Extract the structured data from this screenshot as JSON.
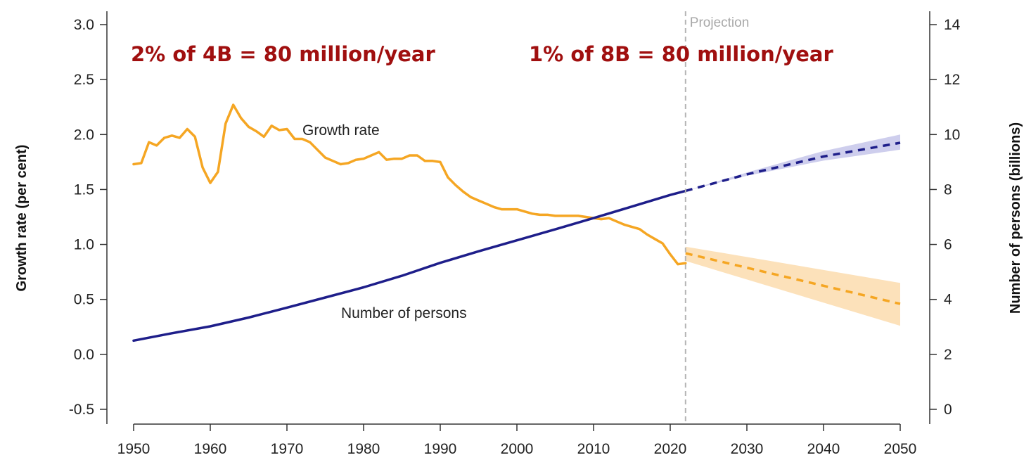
{
  "chart_data": {
    "type": "line",
    "x_ticks": [
      1950,
      1960,
      1970,
      1980,
      1990,
      2000,
      2010,
      2020,
      2030,
      2040,
      2050
    ],
    "xlim": [
      1950,
      2050
    ],
    "y_left": {
      "label": "Growth rate (per cent)",
      "lim": [
        -0.5,
        3.0
      ],
      "ticks": [
        -0.5,
        0.0,
        0.5,
        1.0,
        1.5,
        2.0,
        2.5,
        3.0
      ],
      "tick_labels": [
        "-0.5",
        "0.0",
        "0.5",
        "1.0",
        "1.5",
        "2.0",
        "2.5",
        "3.0"
      ]
    },
    "y_right": {
      "label": "Number of persons (billions)",
      "lim": [
        0,
        14
      ],
      "ticks": [
        0,
        2,
        4,
        6,
        8,
        10,
        12,
        14
      ]
    },
    "projection_start": 2022,
    "projection_label": "Projection",
    "series": [
      {
        "name": "Growth rate",
        "axis": "left",
        "color": "#f5a623",
        "x": [
          1950,
          1951,
          1952,
          1953,
          1954,
          1955,
          1956,
          1957,
          1958,
          1959,
          1960,
          1961,
          1962,
          1963,
          1964,
          1965,
          1966,
          1967,
          1968,
          1969,
          1970,
          1971,
          1972,
          1973,
          1974,
          1975,
          1976,
          1977,
          1978,
          1979,
          1980,
          1981,
          1982,
          1983,
          1984,
          1985,
          1986,
          1987,
          1988,
          1989,
          1990,
          1991,
          1992,
          1993,
          1994,
          1995,
          1996,
          1997,
          1998,
          1999,
          2000,
          2001,
          2002,
          2003,
          2004,
          2005,
          2006,
          2007,
          2008,
          2009,
          2010,
          2011,
          2012,
          2013,
          2014,
          2015,
          2016,
          2017,
          2018,
          2019,
          2020,
          2021,
          2022
        ],
        "values": [
          1.73,
          1.74,
          1.93,
          1.9,
          1.97,
          1.99,
          1.97,
          2.05,
          1.98,
          1.7,
          1.56,
          1.66,
          2.1,
          2.27,
          2.15,
          2.07,
          2.03,
          1.98,
          2.08,
          2.04,
          2.05,
          1.96,
          1.96,
          1.93,
          1.86,
          1.79,
          1.76,
          1.73,
          1.74,
          1.77,
          1.78,
          1.81,
          1.84,
          1.77,
          1.78,
          1.78,
          1.81,
          1.81,
          1.76,
          1.76,
          1.75,
          1.61,
          1.54,
          1.48,
          1.43,
          1.4,
          1.37,
          1.34,
          1.32,
          1.32,
          1.32,
          1.3,
          1.28,
          1.27,
          1.27,
          1.26,
          1.26,
          1.26,
          1.26,
          1.25,
          1.24,
          1.23,
          1.24,
          1.21,
          1.18,
          1.16,
          1.14,
          1.09,
          1.05,
          1.01,
          0.91,
          0.82,
          0.83
        ]
      },
      {
        "name": "Number of persons",
        "axis": "right",
        "color": "#1e1e8a",
        "x": [
          1950,
          1955,
          1960,
          1965,
          1970,
          1975,
          1980,
          1985,
          1990,
          1995,
          2000,
          2005,
          2010,
          2015,
          2020,
          2022
        ],
        "values": [
          2.5,
          2.77,
          3.02,
          3.34,
          3.7,
          4.07,
          4.44,
          4.86,
          5.33,
          5.75,
          6.15,
          6.55,
          6.96,
          7.38,
          7.8,
          7.95
        ]
      }
    ],
    "projections": [
      {
        "series": "Growth rate",
        "axis": "left",
        "color": "#f5a623",
        "band_color": "#fbdcae",
        "x": [
          2022,
          2050
        ],
        "median": [
          0.92,
          0.46
        ],
        "lower": [
          0.85,
          0.26
        ],
        "upper": [
          0.98,
          0.65
        ]
      },
      {
        "series": "Number of persons",
        "axis": "right",
        "color": "#1e1e8a",
        "band_color": "#c6c6ea",
        "x": [
          2022,
          2030,
          2040,
          2050
        ],
        "median": [
          7.95,
          8.55,
          9.2,
          9.7
        ],
        "lower": [
          7.95,
          8.5,
          9.05,
          9.45
        ],
        "upper": [
          7.95,
          8.62,
          9.4,
          10.0
        ]
      }
    ],
    "annotations": [
      "2% of 4B = 80 million/year",
      "1% of 8B = 80 million/year"
    ]
  }
}
